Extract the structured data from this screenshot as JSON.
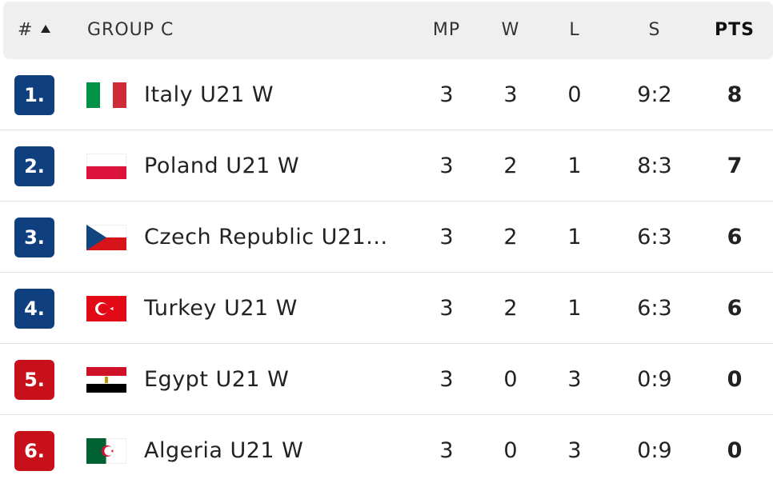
{
  "header": {
    "rank": "#",
    "group": "GROUP C",
    "mp": "MP",
    "w": "W",
    "l": "L",
    "s": "S",
    "pts": "PTS"
  },
  "rows": [
    {
      "rank": "1.",
      "team": "Italy U21 W",
      "mp": 3,
      "w": 3,
      "l": 0,
      "s": "9:2",
      "pts": 8
    },
    {
      "rank": "2.",
      "team": "Poland U21 W",
      "mp": 3,
      "w": 2,
      "l": 1,
      "s": "8:3",
      "pts": 7
    },
    {
      "rank": "3.",
      "team": "Czech Republic U21...",
      "mp": 3,
      "w": 2,
      "l": 1,
      "s": "6:3",
      "pts": 6
    },
    {
      "rank": "4.",
      "team": "Turkey U21 W",
      "mp": 3,
      "w": 2,
      "l": 1,
      "s": "6:3",
      "pts": 6
    },
    {
      "rank": "5.",
      "team": "Egypt U21 W",
      "mp": 3,
      "w": 0,
      "l": 3,
      "s": "0:9",
      "pts": 0
    },
    {
      "rank": "6.",
      "team": "Algeria U21 W",
      "mp": 3,
      "w": 0,
      "l": 3,
      "s": "0:9",
      "pts": 0
    }
  ]
}
